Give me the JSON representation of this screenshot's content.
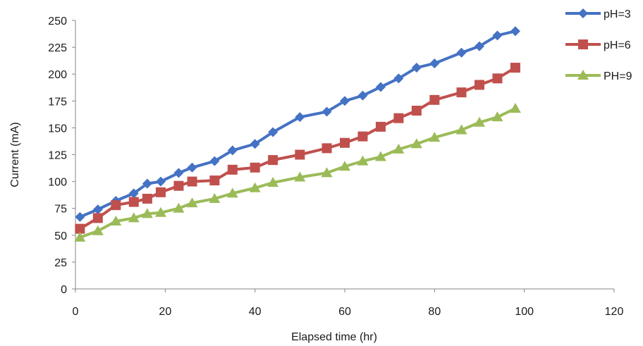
{
  "chart_data": {
    "type": "line",
    "xlabel": "Elapsed time (hr)",
    "ylabel": "Current (mA)",
    "xlim": [
      0,
      120
    ],
    "ylim": [
      0,
      250
    ],
    "xticks": [
      0,
      20,
      40,
      60,
      80,
      100,
      120
    ],
    "yticks": [
      0,
      25,
      50,
      75,
      100,
      125,
      150,
      175,
      200,
      225,
      250
    ],
    "grid": false,
    "legend_position": "top-right",
    "series": [
      {
        "name": "pH=3",
        "color": "#4472c4",
        "marker": "diamond",
        "x": [
          1,
          5,
          9,
          13,
          16,
          19,
          23,
          26,
          31,
          35,
          40,
          44,
          50,
          56,
          60,
          64,
          68,
          72,
          76,
          80,
          86,
          90,
          94,
          98
        ],
        "y": [
          67,
          74,
          82,
          89,
          98,
          100,
          108,
          113,
          119,
          129,
          135,
          146,
          160,
          165,
          175,
          180,
          188,
          196,
          206,
          210,
          220,
          226,
          236,
          240
        ]
      },
      {
        "name": "pH=6",
        "color": "#c0504d",
        "marker": "square",
        "x": [
          1,
          5,
          9,
          13,
          16,
          19,
          23,
          26,
          31,
          35,
          40,
          44,
          50,
          56,
          60,
          64,
          68,
          72,
          76,
          80,
          86,
          90,
          94,
          98
        ],
        "y": [
          56,
          66,
          78,
          81,
          84,
          90,
          96,
          100,
          101,
          111,
          113,
          120,
          125,
          131,
          136,
          142,
          151,
          159,
          166,
          176,
          183,
          190,
          196,
          206
        ]
      },
      {
        "name": "PH=9",
        "color": "#9bbb59",
        "marker": "triangle",
        "x": [
          1,
          5,
          9,
          13,
          16,
          19,
          23,
          26,
          31,
          35,
          40,
          44,
          50,
          56,
          60,
          64,
          68,
          72,
          76,
          80,
          86,
          90,
          94,
          98
        ],
        "y": [
          48,
          54,
          63,
          66,
          70,
          71,
          75,
          80,
          84,
          89,
          94,
          99,
          104,
          108,
          114,
          119,
          123,
          130,
          135,
          141,
          148,
          155,
          160,
          168
        ]
      }
    ]
  }
}
